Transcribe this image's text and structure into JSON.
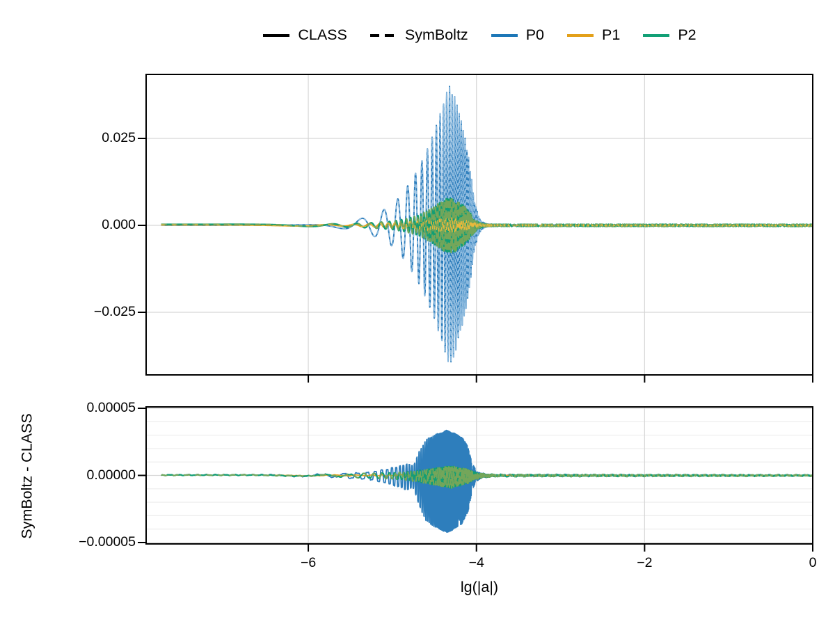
{
  "figure": {
    "background": "#ffffff"
  },
  "legend": {
    "items": [
      {
        "label": "CLASS",
        "style": "solid",
        "color": "#000000"
      },
      {
        "label": "SymBoltz",
        "style": "dashed",
        "color": "#000000"
      },
      {
        "label": "P0",
        "style": "solid",
        "color": "#1d77b7"
      },
      {
        "label": "P1",
        "style": "solid",
        "color": "#e3a019"
      },
      {
        "label": "P2",
        "style": "solid",
        "color": "#12a076"
      }
    ]
  },
  "colors": {
    "grid_major": "#d6d6d6",
    "grid_minor": "#ececec",
    "spine": "#000000",
    "p0_blue": "#2e7ebc",
    "p0_blue_light": "#8fbce0",
    "p1_orange": "#e3a019",
    "p1_orange_light": "#e9b93c",
    "p2_green": "#129e74",
    "p2_green_olive": "#74a65a"
  },
  "chart_data": {
    "type": "line",
    "title": "",
    "xlabel": "lg(|a|)",
    "xlim": [
      -7.929,
      0
    ],
    "x_ticks": [
      -6,
      -4,
      -2,
      0
    ],
    "x_tick_labels": [
      "−6",
      "−4",
      "−2",
      "0"
    ],
    "x_data_start": -7.75,
    "grid": "on",
    "legend_position": "top-center",
    "description": "Photon multipoles P0, P1, P2 versus lg(|a|) computed by CLASS (solid) and SymBoltz (dashed); curves oscillate rapidly with an envelope peaking near lg|a| = -4.33 and vanishing after lg|a| = -4. Bottom panel shows the difference SymBoltz - CLASS. Envelope arrays below give [lg|a|, oscillation amplitude].",
    "oscillation": {
      "model": "chirp",
      "phase_coefficient": 10.915,
      "phase_ref_lg_a": -5.2
    },
    "panels": [
      {
        "id": "main",
        "ylabel": "",
        "ylim": [
          -0.0434,
          0.0434
        ],
        "y_ticks": [
          0.025,
          0.0,
          -0.025
        ],
        "y_tick_labels": [
          "0.025",
          "0.000",
          "−0.025"
        ],
        "series": [
          {
            "name": "P0",
            "variants": [
              "CLASS (solid)",
              "SymBoltz (dashed)"
            ],
            "color": "#2e7ebc",
            "dash_color": "#8fbce0",
            "dash": [
              5,
              4
            ],
            "width": 2,
            "freq": 1,
            "phase": 0.4,
            "noise": 0,
            "envelope": [
              [
                -7.75,
                5e-05
              ],
              [
                -6.3,
                8e-05
              ],
              [
                -6.0,
                0.00018
              ],
              [
                -5.8,
                0.0004
              ],
              [
                -5.6,
                0.0009
              ],
              [
                -5.45,
                0.0015
              ],
              [
                -5.3,
                0.0024
              ],
              [
                -5.15,
                0.0038
              ],
              [
                -5.0,
                0.006
              ],
              [
                -4.9,
                0.0085
              ],
              [
                -4.8,
                0.012
              ],
              [
                -4.7,
                0.016
              ],
              [
                -4.6,
                0.021
              ],
              [
                -4.5,
                0.027
              ],
              [
                -4.42,
                0.033
              ],
              [
                -4.36,
                0.038
              ],
              [
                -4.32,
                0.04
              ],
              [
                -4.27,
                0.038
              ],
              [
                -4.2,
                0.032
              ],
              [
                -4.15,
                0.027
              ],
              [
                -4.1,
                0.021
              ],
              [
                -4.06,
                0.014
              ],
              [
                -4.02,
                0.007
              ],
              [
                -3.98,
                0.003
              ],
              [
                -3.94,
                0.0012
              ],
              [
                -3.88,
                0.0004
              ],
              [
                -3.7,
                0.00015
              ],
              [
                0,
                0.0001
              ]
            ]
          },
          {
            "name": "P1",
            "variants": [
              "CLASS (solid)",
              "SymBoltz (dashed)"
            ],
            "color": "#e3a019",
            "dash_color": "#e9b93c",
            "dash": [
              5,
              11
            ],
            "width": 2,
            "freq": 2,
            "phase": 2.1,
            "noise": 0,
            "envelope": [
              [
                -7.75,
                0.00015
              ],
              [
                -5.6,
                0.0002
              ],
              [
                -5.2,
                0.0005
              ],
              [
                -4.9,
                0.0009
              ],
              [
                -4.6,
                0.0014
              ],
              [
                -4.4,
                0.0019
              ],
              [
                -4.3,
                0.0021
              ],
              [
                -4.15,
                0.0016
              ],
              [
                -4.05,
                0.001
              ],
              [
                -3.95,
                0.0004
              ],
              [
                -3.8,
                0.0002
              ],
              [
                0,
                0.0002
              ]
            ]
          },
          {
            "name": "P2",
            "variants": [
              "CLASS (solid)",
              "SymBoltz (dashed)"
            ],
            "color": "#129e74",
            "dash_color": "#74a65a",
            "dash": [
              8,
              7
            ],
            "width": 2.4,
            "freq": 2,
            "phase": 1.1,
            "noise": 0,
            "envelope": [
              [
                -7.75,
                0.0003
              ],
              [
                -6.0,
                0.0003
              ],
              [
                -5.5,
                0.0005
              ],
              [
                -5.2,
                0.0008
              ],
              [
                -5.0,
                0.0012
              ],
              [
                -4.85,
                0.0018
              ],
              [
                -4.7,
                0.0028
              ],
              [
                -4.6,
                0.004
              ],
              [
                -4.5,
                0.0055
              ],
              [
                -4.4,
                0.0072
              ],
              [
                -4.33,
                0.008
              ],
              [
                -4.26,
                0.0076
              ],
              [
                -4.18,
                0.0062
              ],
              [
                -4.1,
                0.0045
              ],
              [
                -4.04,
                0.0025
              ],
              [
                -3.98,
                0.001
              ],
              [
                -3.92,
                0.0005
              ],
              [
                -3.8,
                0.0003
              ],
              [
                0,
                0.0003
              ]
            ]
          }
        ]
      },
      {
        "id": "residual",
        "ylabel": "SymBoltz - CLASS",
        "ylim": [
          -5.1e-05,
          5.1e-05
        ],
        "y_ticks": [
          5e-05,
          0.0,
          -5e-05
        ],
        "y_tick_labels": [
          "0.00005",
          "0.00000",
          "−0.00005"
        ],
        "minor_grid_step": 1e-05,
        "series": [
          {
            "name": "P0",
            "color": "#2e7ebc",
            "dash_color": null,
            "dash": null,
            "width": 1.8,
            "freq": 3,
            "phase": 0.5,
            "clip": 1.6,
            "bias": 0.12,
            "noise": 5e-07,
            "envelope": [
              [
                -7.75,
                4e-07
              ],
              [
                -6.5,
                4e-07
              ],
              [
                -6.0,
                6e-07
              ],
              [
                -5.6,
                1.2e-06
              ],
              [
                -5.4,
                2.2e-06
              ],
              [
                -5.25,
                3e-06
              ],
              [
                -5.1,
                4.5e-06
              ],
              [
                -5.0,
                6.5e-06
              ],
              [
                -4.9,
                8e-06
              ],
              [
                -4.82,
                9.5e-06
              ],
              [
                -4.75,
                8e-06
              ],
              [
                -4.68,
                2e-05
              ],
              [
                -4.6,
                3e-05
              ],
              [
                -4.5,
                3.4e-05
              ],
              [
                -4.42,
                3.6e-05
              ],
              [
                -4.35,
                3.8e-05
              ],
              [
                -4.25,
                3.5e-05
              ],
              [
                -4.17,
                3.2e-05
              ],
              [
                -4.1,
                2.4e-05
              ],
              [
                -4.05,
                1e-05
              ],
              [
                -4.0,
                3.5e-06
              ],
              [
                -3.93,
                1.5e-06
              ],
              [
                -3.8,
                6e-07
              ],
              [
                0,
                3e-07
              ]
            ]
          },
          {
            "name": "P1",
            "color": "#e3a019",
            "dash_color": null,
            "dash": null,
            "width": 1.6,
            "freq": 2,
            "phase": 0.8,
            "noise": 2e-07,
            "envelope": [
              [
                -7.75,
                2e-07
              ],
              [
                -5.0,
                4e-07
              ],
              [
                -4.5,
                9e-07
              ],
              [
                -4.3,
                1.1e-06
              ],
              [
                -4.05,
                6e-07
              ],
              [
                -3.8,
                3e-07
              ],
              [
                0,
                2e-07
              ]
            ]
          },
          {
            "name": "P2",
            "color": "#129e74",
            "dash_color": "#74a65a",
            "dash": [
              9,
              8
            ],
            "width": 2.2,
            "freq": 2.4,
            "phase": 1.3,
            "clip": 1.2,
            "bias": 0.15,
            "noise": 4e-07,
            "envelope": [
              [
                -7.75,
                3e-07
              ],
              [
                -6.0,
                4e-07
              ],
              [
                -5.6,
                8e-07
              ],
              [
                -5.35,
                1.4e-06
              ],
              [
                -5.1,
                1.8e-06
              ],
              [
                -4.9,
                2.5e-06
              ],
              [
                -4.75,
                3.5e-06
              ],
              [
                -4.6,
                5e-06
              ],
              [
                -4.45,
                6.5e-06
              ],
              [
                -4.3,
                8e-06
              ],
              [
                -4.2,
                6.5e-06
              ],
              [
                -4.1,
                5e-06
              ],
              [
                -4.02,
                2.5e-06
              ],
              [
                -3.92,
                1.2e-06
              ],
              [
                -3.75,
                6e-07
              ],
              [
                0,
                3e-07
              ]
            ]
          }
        ]
      }
    ]
  }
}
